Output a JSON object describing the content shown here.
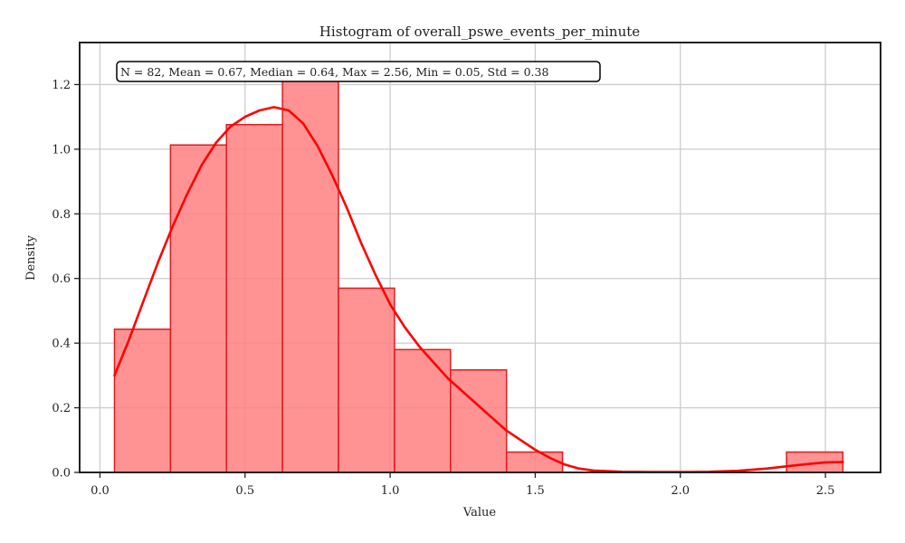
{
  "chart_data": {
    "type": "histogram",
    "title": "Histogram of overall_pswe_events_per_minute",
    "xlabel": "Value",
    "ylabel": "Density",
    "xlim": [
      -0.07,
      2.69
    ],
    "ylim": [
      0,
      1.33
    ],
    "xticks": [
      0.0,
      0.5,
      1.0,
      1.5,
      2.0,
      2.5
    ],
    "xtick_labels": [
      "0.0",
      "0.5",
      "1.0",
      "1.5",
      "2.0",
      "2.5"
    ],
    "yticks": [
      0.0,
      0.2,
      0.4,
      0.6,
      0.8,
      1.0,
      1.2
    ],
    "ytick_labels": [
      "0.0",
      "0.2",
      "0.4",
      "0.6",
      "0.8",
      "1.0",
      "1.2"
    ],
    "grid": true,
    "bins": [
      {
        "start": 0.05,
        "end": 0.243,
        "density": 0.443
      },
      {
        "start": 0.243,
        "end": 0.436,
        "density": 1.013
      },
      {
        "start": 0.436,
        "end": 0.629,
        "density": 1.076
      },
      {
        "start": 0.629,
        "end": 0.822,
        "density": 1.223
      },
      {
        "start": 0.822,
        "end": 1.015,
        "density": 0.57
      },
      {
        "start": 1.015,
        "end": 1.208,
        "density": 0.38
      },
      {
        "start": 1.208,
        "end": 1.401,
        "density": 0.317
      },
      {
        "start": 1.401,
        "end": 1.594,
        "density": 0.063
      },
      {
        "start": 1.594,
        "end": 1.787,
        "density": 0.0
      },
      {
        "start": 1.787,
        "end": 1.98,
        "density": 0.0
      },
      {
        "start": 1.98,
        "end": 2.173,
        "density": 0.0
      },
      {
        "start": 2.173,
        "end": 2.366,
        "density": 0.0
      },
      {
        "start": 2.366,
        "end": 2.56,
        "density": 0.063
      }
    ],
    "kde": {
      "x": [
        0.05,
        0.1,
        0.15,
        0.2,
        0.25,
        0.3,
        0.35,
        0.4,
        0.45,
        0.5,
        0.55,
        0.6,
        0.65,
        0.7,
        0.75,
        0.8,
        0.85,
        0.9,
        0.95,
        1.0,
        1.05,
        1.1,
        1.15,
        1.2,
        1.25,
        1.3,
        1.35,
        1.4,
        1.45,
        1.5,
        1.55,
        1.6,
        1.65,
        1.7,
        1.8,
        1.9,
        2.0,
        2.1,
        2.2,
        2.3,
        2.4,
        2.45,
        2.5,
        2.56
      ],
      "y": [
        0.3,
        0.41,
        0.53,
        0.65,
        0.76,
        0.86,
        0.95,
        1.02,
        1.07,
        1.1,
        1.12,
        1.13,
        1.12,
        1.08,
        1.01,
        0.92,
        0.82,
        0.71,
        0.61,
        0.52,
        0.45,
        0.39,
        0.34,
        0.29,
        0.25,
        0.21,
        0.17,
        0.13,
        0.1,
        0.07,
        0.045,
        0.025,
        0.012,
        0.006,
        0.002,
        0.001,
        0.001,
        0.002,
        0.005,
        0.012,
        0.022,
        0.027,
        0.031,
        0.032
      ]
    },
    "annotation": "N = 82, Mean = 0.67, Median = 0.64, Max = 2.56, Min = 0.05, Std = 0.38",
    "colors": {
      "bar_fill": "#ff8080",
      "bar_edge": "#e41a1c",
      "kde_line": "#ff0000",
      "grid": "#cccccc",
      "axes": "#222222"
    }
  }
}
